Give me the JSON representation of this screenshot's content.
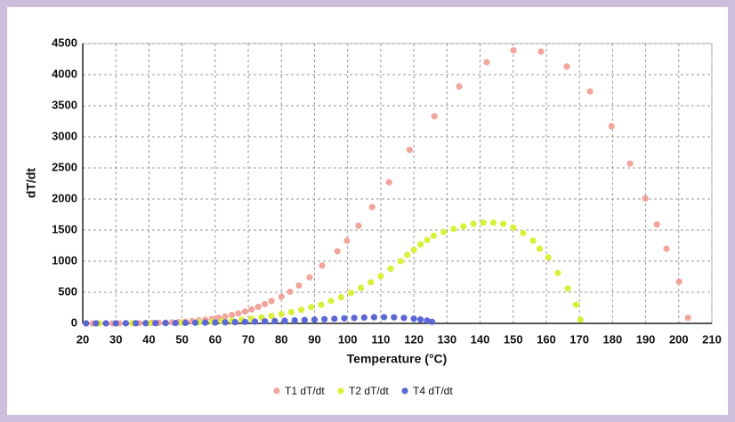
{
  "chart_data": {
    "type": "scatter",
    "x_label": "Temperature (°C)",
    "y_label": "dT/dt",
    "xlim": [
      20,
      210
    ],
    "xticks": [
      20,
      30,
      40,
      50,
      60,
      70,
      80,
      90,
      100,
      110,
      120,
      130,
      140,
      150,
      160,
      170,
      180,
      190,
      200,
      210
    ],
    "ylim": [
      0,
      4500
    ],
    "yticks": [
      0,
      500,
      1000,
      1500,
      2000,
      2500,
      3000,
      3500,
      4000,
      4500
    ],
    "grid": true,
    "legend": "bottom",
    "series": [
      {
        "name": "T1 dT/dt",
        "color": "#f2a59d",
        "x": [
          21,
          23,
          25,
          27,
          29,
          31,
          33,
          35,
          37,
          39,
          41,
          43,
          45,
          47,
          49,
          51,
          53,
          55,
          57,
          59,
          61,
          63,
          65,
          67,
          69,
          71,
          73,
          75,
          77,
          80,
          82.6,
          85.3,
          88.5,
          92.3,
          96.9,
          99.8,
          103.3,
          107.4,
          112.5,
          118.7,
          126.2,
          133.7,
          142,
          150.1,
          158.4,
          166.2,
          173.2,
          179.7,
          185.3,
          189.9,
          193.4,
          196.3,
          200.1,
          202.8
        ],
        "values": [
          0,
          0,
          0,
          0,
          1,
          1,
          2,
          3,
          4,
          5,
          7,
          10,
          13,
          17,
          22,
          28,
          36,
          46,
          58,
          72,
          90,
          110,
          135,
          160,
          190,
          225,
          265,
          310,
          360,
          430,
          510,
          610,
          740,
          930,
          1160,
          1330,
          1570,
          1870,
          2270,
          2790,
          3330,
          3810,
          4200,
          4390,
          4370,
          4130,
          3730,
          3170,
          2570,
          2010,
          1590,
          1200,
          670,
          90
        ]
      },
      {
        "name": "T2 dT/dt",
        "color": "#d9f03a",
        "x": [
          21,
          25,
          30,
          35,
          40,
          45,
          50,
          55,
          59,
          62,
          65,
          68,
          71,
          74,
          77,
          80,
          83,
          86,
          89,
          92,
          95,
          98,
          101,
          104,
          107,
          110,
          113,
          116,
          118,
          120,
          122,
          124,
          126,
          129,
          132,
          135,
          138,
          141,
          144,
          147,
          150,
          153,
          156,
          158,
          160.6,
          163.5,
          166.5,
          169,
          170.3
        ],
        "values": [
          0,
          0,
          1,
          2,
          4,
          7,
          12,
          18,
          25,
          35,
          45,
          60,
          75,
          95,
          120,
          150,
          180,
          220,
          260,
          300,
          360,
          420,
          490,
          570,
          660,
          760,
          880,
          1000,
          1100,
          1180,
          1270,
          1340,
          1410,
          1470,
          1520,
          1560,
          1600,
          1620,
          1620,
          1600,
          1540,
          1450,
          1330,
          1200,
          1060,
          810,
          560,
          300,
          60
        ]
      },
      {
        "name": "T4 dT/dt",
        "color": "#5b67d6",
        "x": [
          21,
          24,
          27,
          30,
          33,
          36,
          39,
          42,
          45,
          48,
          51,
          54,
          57,
          60,
          63,
          66,
          69,
          72,
          75,
          78,
          81,
          84,
          87,
          90,
          93,
          96,
          99,
          102,
          105,
          108,
          111,
          114,
          117,
          120,
          122,
          124,
          125.5
        ],
        "values": [
          0,
          0,
          1,
          1,
          2,
          2,
          3,
          4,
          5,
          6,
          8,
          10,
          12,
          14,
          17,
          20,
          24,
          28,
          32,
          37,
          42,
          48,
          54,
          60,
          67,
          74,
          81,
          88,
          94,
          98,
          100,
          97,
          88,
          75,
          62,
          45,
          25
        ]
      }
    ]
  }
}
